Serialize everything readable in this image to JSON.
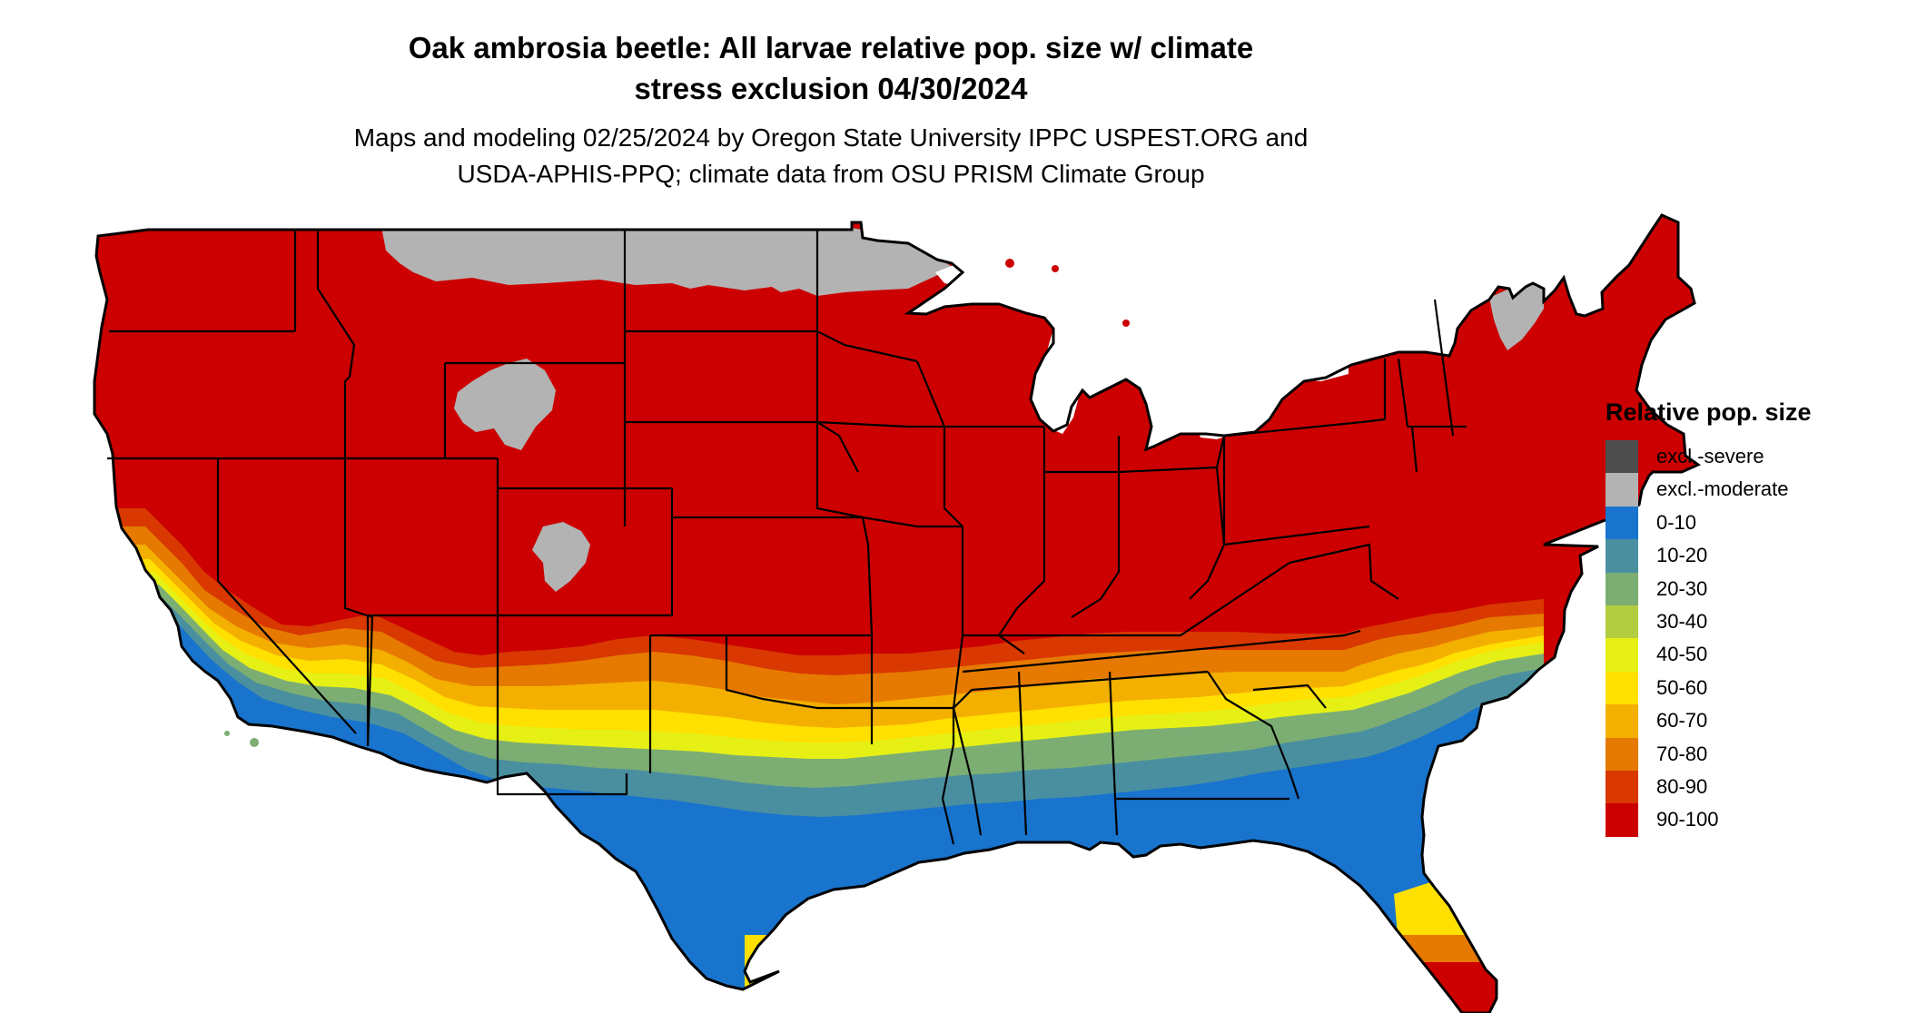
{
  "title_lines": [
    "Oak ambrosia beetle: All larvae relative pop. size w/ climate",
    "stress exclusion 04/30/2024"
  ],
  "subtitle_lines": [
    "Maps and modeling 02/25/2024 by Oregon State University IPPC USPEST.ORG and",
    "USDA-APHIS-PPQ; climate data from OSU PRISM Climate Group"
  ],
  "legend": {
    "title": "Relative pop. size",
    "items": [
      {
        "label": "excl.-severe",
        "color": "#4d4d4d"
      },
      {
        "label": "excl.-moderate",
        "color": "#b3b3b3"
      },
      {
        "label": "0-10",
        "color": "#1874cd"
      },
      {
        "label": "10-20",
        "color": "#4a8fa0"
      },
      {
        "label": "20-30",
        "color": "#7cae73"
      },
      {
        "label": "30-40",
        "color": "#b3cd40"
      },
      {
        "label": "40-50",
        "color": "#e6f015"
      },
      {
        "label": "50-60",
        "color": "#ffe000"
      },
      {
        "label": "60-70",
        "color": "#f4b000"
      },
      {
        "label": "70-80",
        "color": "#e67a00"
      },
      {
        "label": "80-90",
        "color": "#d93800"
      },
      {
        "label": "90-100",
        "color": "#cc0000"
      }
    ]
  },
  "map_colors": {
    "base": "#cc0000",
    "excl_moderate": "#b3b3b3",
    "band_80_90": "#d93800",
    "band_70_80": "#e67a00",
    "band_60_70": "#f4b000",
    "band_50_60": "#ffe000",
    "band_40_50": "#e6f015",
    "band_20_30": "#7cae73",
    "band_10_20": "#4a8fa0",
    "band_0_10": "#1874cd",
    "border": "#000000",
    "lakes": "#ffffff"
  }
}
